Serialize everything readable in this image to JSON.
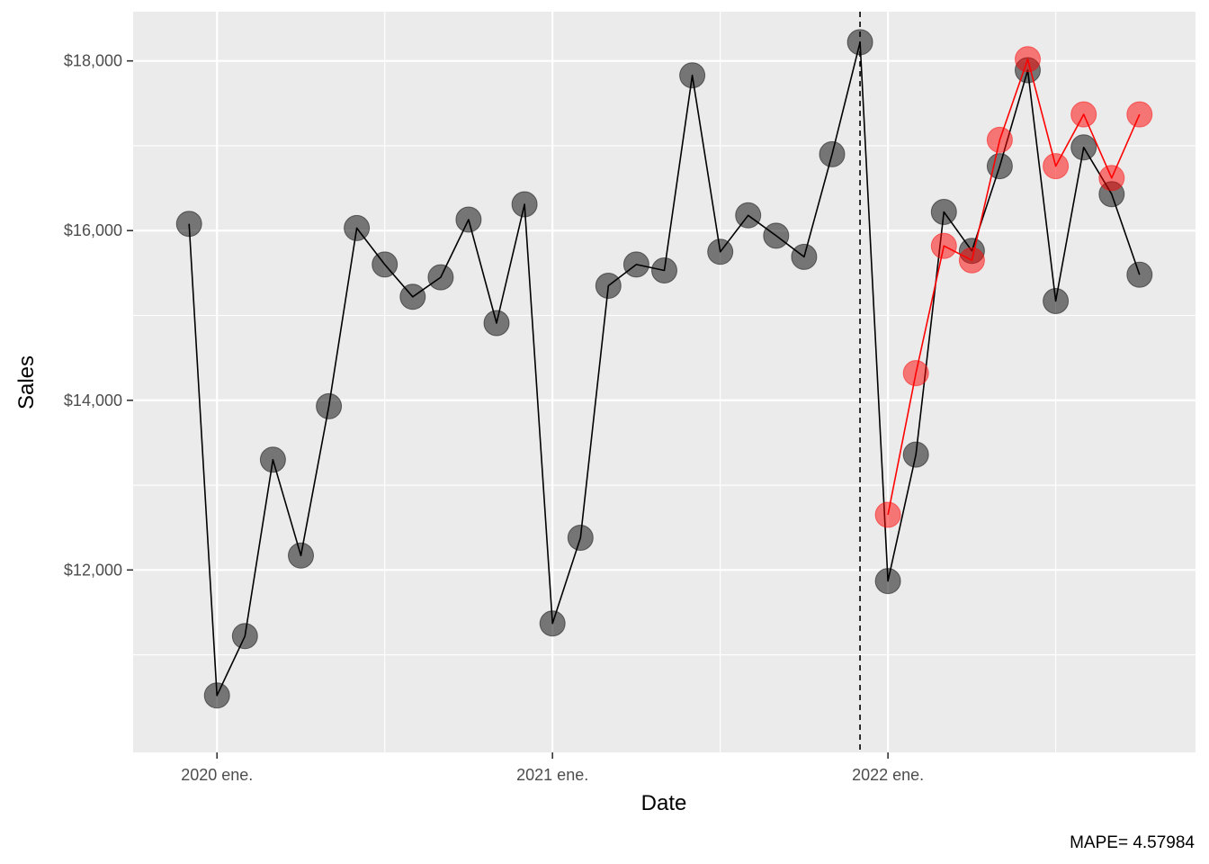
{
  "chart_data": {
    "type": "line",
    "xlabel": "Date",
    "ylabel": "Sales",
    "caption": "MAPE= 4.57984",
    "x_ticks": [
      {
        "label": "2020 ene.",
        "value": "2020-01"
      },
      {
        "label": "2021 ene.",
        "value": "2021-01"
      },
      {
        "label": "2022 ene.",
        "value": "2022-01"
      }
    ],
    "y_ticks": [
      {
        "label": "$12,000",
        "value": 12000
      },
      {
        "label": "$14,000",
        "value": 14000
      },
      {
        "label": "$16,000",
        "value": 16000
      },
      {
        "label": "$18,000",
        "value": 18000
      }
    ],
    "xlim": [
      "2019-10",
      "2022-12"
    ],
    "ylim": [
      9850,
      18580
    ],
    "grid": true,
    "vline": {
      "x": "2021-12",
      "style": "dashed",
      "color": "#000000"
    },
    "colors": {
      "panel": "#EBEBEB",
      "grid": "#FFFFFF",
      "actual": "#000000",
      "forecast": "#FF0000"
    },
    "series": [
      {
        "role": "actual",
        "x": [
          "2019-12",
          "2020-01",
          "2020-02",
          "2020-03",
          "2020-04",
          "2020-05",
          "2020-06",
          "2020-07",
          "2020-08",
          "2020-09",
          "2020-10",
          "2020-11",
          "2020-12",
          "2021-01",
          "2021-02",
          "2021-03",
          "2021-04",
          "2021-05",
          "2021-06",
          "2021-07",
          "2021-08",
          "2021-09",
          "2021-10",
          "2021-11",
          "2021-12",
          "2022-01",
          "2022-02",
          "2022-03",
          "2022-04",
          "2022-05",
          "2022-06",
          "2022-07",
          "2022-08",
          "2022-09",
          "2022-10"
        ],
        "values": [
          16080,
          10520,
          11220,
          13300,
          12170,
          13930,
          16030,
          15600,
          15220,
          15450,
          16130,
          14910,
          16310,
          11370,
          12380,
          15350,
          15600,
          15530,
          17830,
          15750,
          16180,
          15940,
          15690,
          16900,
          18220,
          11870,
          13360,
          16220,
          15760,
          16760,
          17890,
          15170,
          16980,
          16430,
          15480
        ]
      },
      {
        "role": "forecast",
        "x": [
          "2022-01",
          "2022-02",
          "2022-03",
          "2022-04",
          "2022-05",
          "2022-06",
          "2022-07",
          "2022-08",
          "2022-09",
          "2022-10"
        ],
        "values": [
          12650,
          14320,
          15820,
          15650,
          17070,
          18020,
          16760,
          17370,
          16620,
          17370
        ]
      }
    ]
  }
}
